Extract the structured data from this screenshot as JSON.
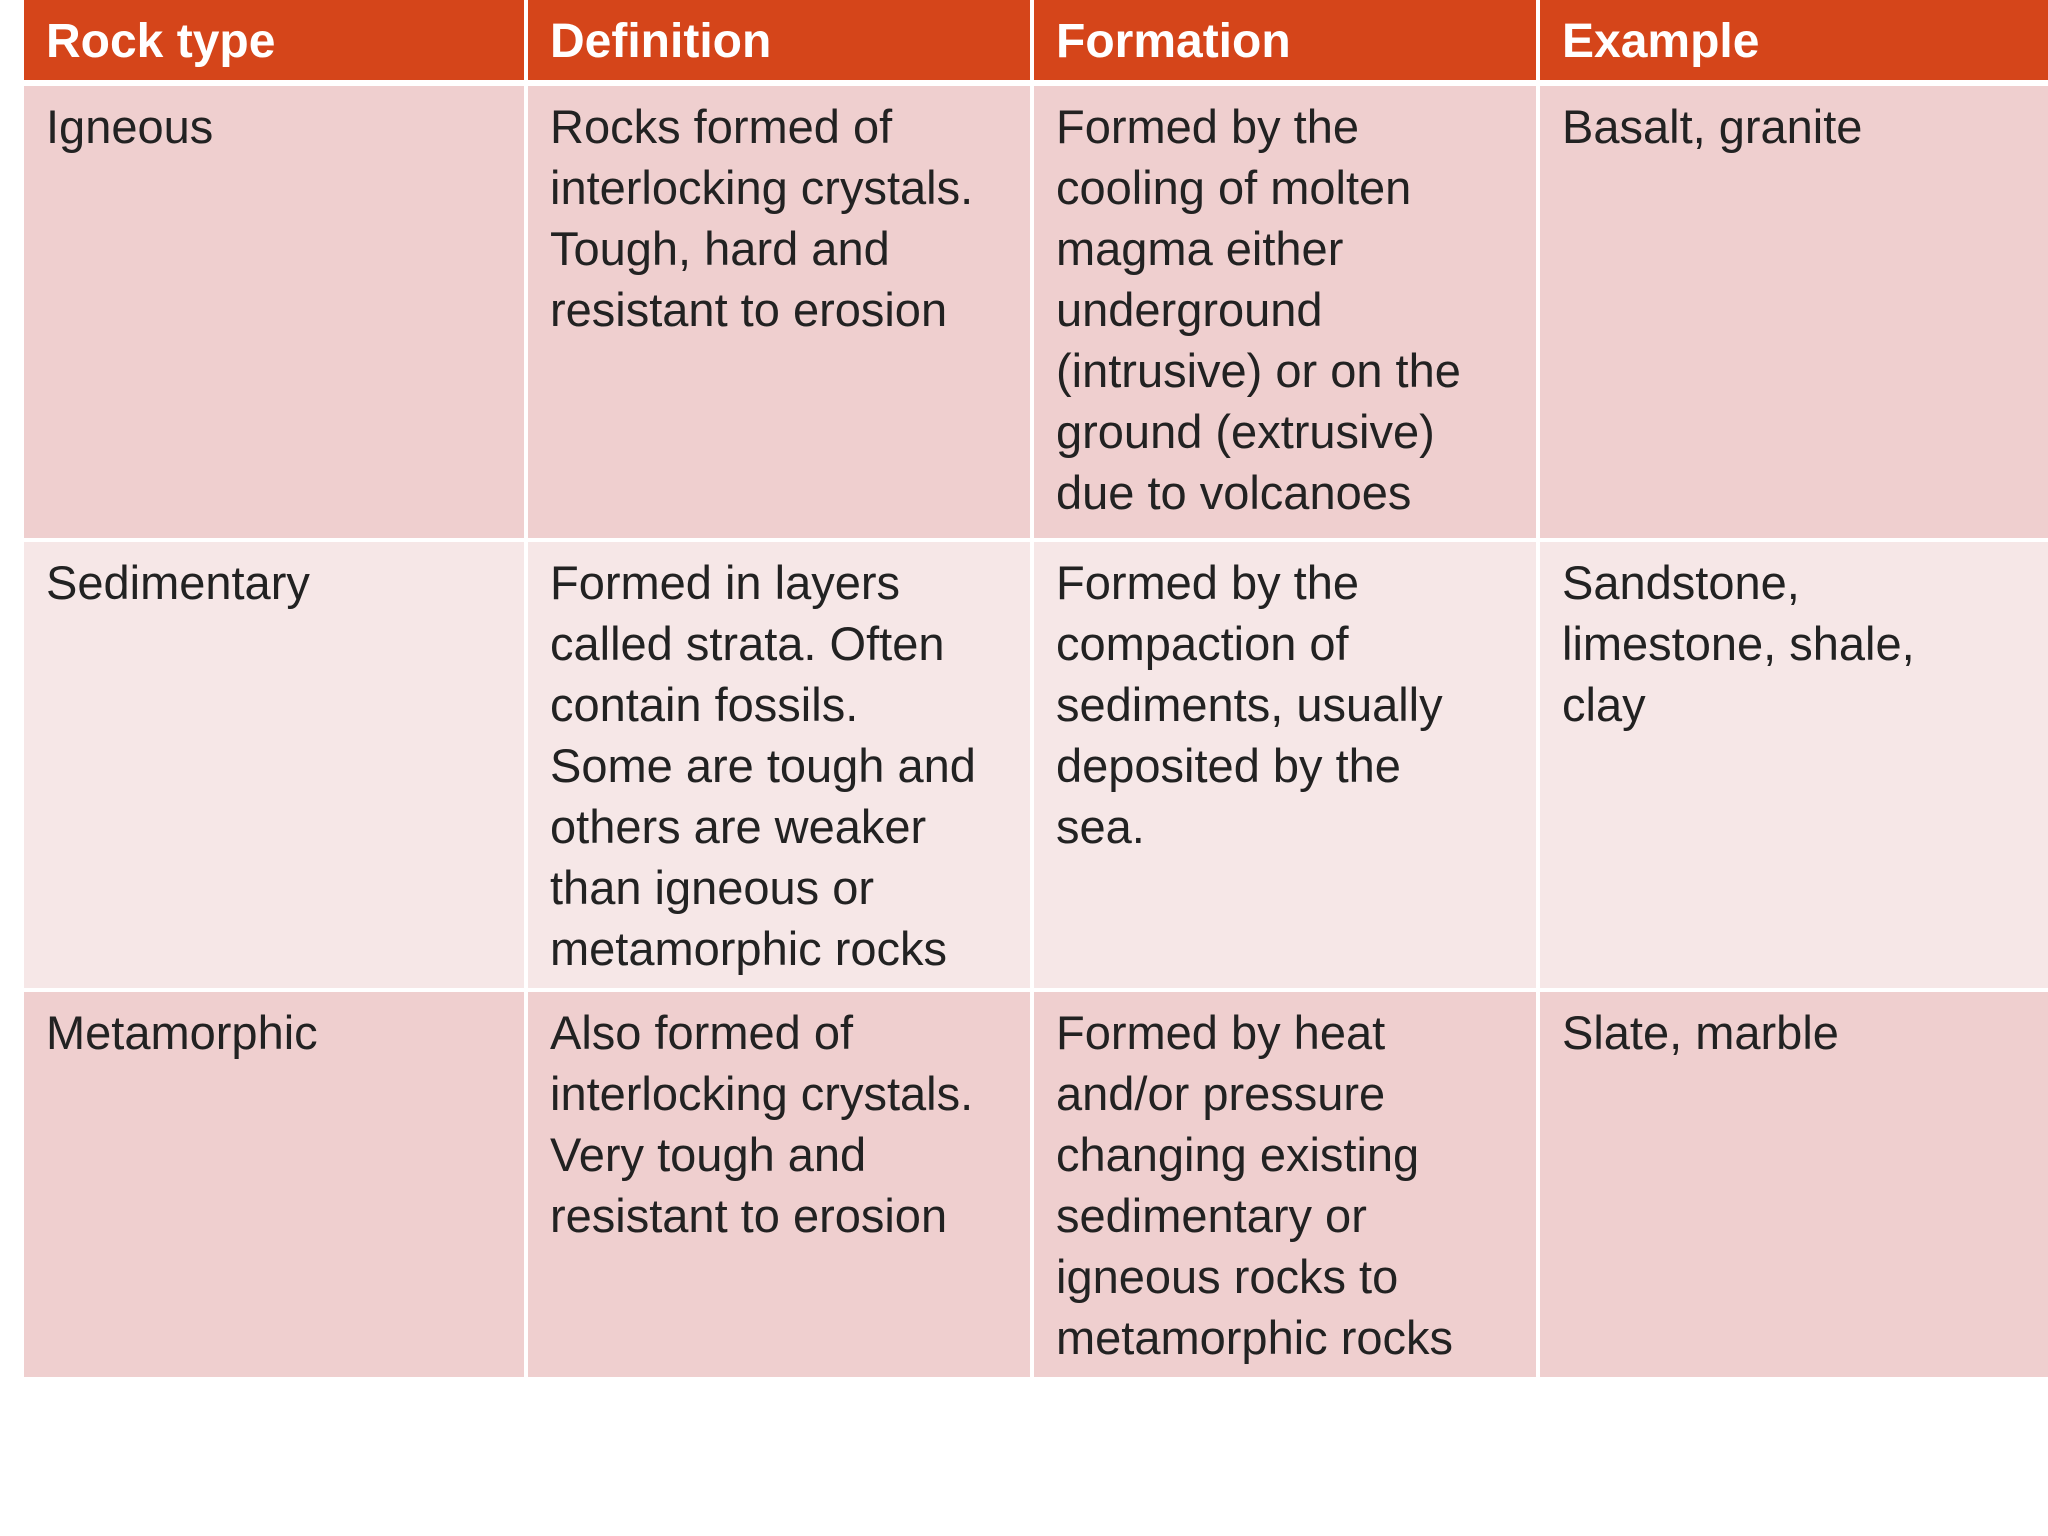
{
  "table": {
    "headers": [
      "Rock type",
      "Definition",
      "Formation",
      "Example"
    ],
    "rows": [
      {
        "rock_type": "Igneous",
        "definition": "Rocks formed of\ninterlocking crystals.\nTough, hard and\nresistant to erosion",
        "formation": "Formed by the\ncooling of molten\nmagma either\nunderground\n(intrusive) or on the\nground (extrusive)\ndue to volcanoes",
        "example": "Basalt, granite"
      },
      {
        "rock_type": "Sedimentary",
        "definition": "Formed in layers\ncalled strata. Often\ncontain fossils.\nSome are tough and\nothers are weaker\nthan igneous or\nmetamorphic rocks",
        "formation": "Formed by the\ncompaction of\nsediments, usually\ndeposited by the\nsea.",
        "example": "Sandstone,\nlimestone, shale,\nclay"
      },
      {
        "rock_type": "Metamorphic",
        "definition": "Also formed of\ninterlocking crystals.\nVery tough and\nresistant to erosion",
        "formation": "Formed by heat\nand/or pressure\nchanging existing\nsedimentary or\nigneous rocks to\nmetamorphic rocks",
        "example": "Slate, marble"
      }
    ]
  },
  "colors": {
    "header_bg": "#d5451a",
    "row_odd_bg": "#efcfcf",
    "row_even_bg": "#f6e7e7"
  }
}
